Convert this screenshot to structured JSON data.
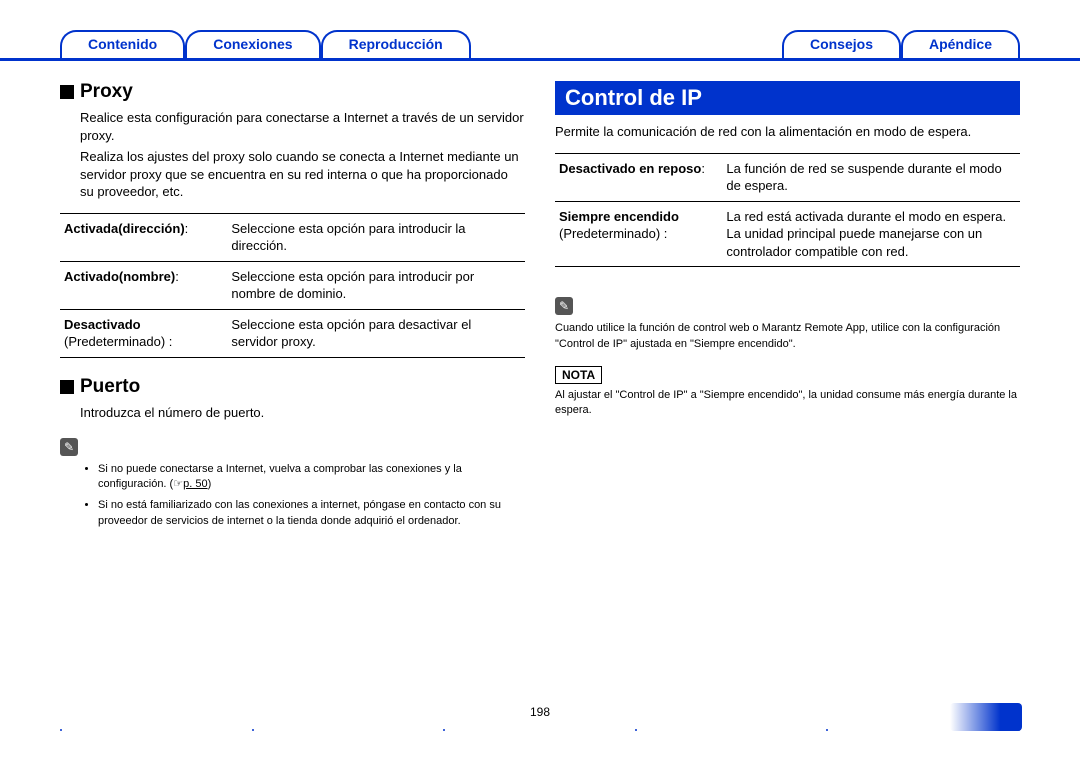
{
  "nav": {
    "left": [
      "Contenido",
      "Conexiones",
      "Reproducción"
    ],
    "right": [
      "Consejos",
      "Apéndice"
    ]
  },
  "left_col": {
    "proxy": {
      "heading": "Proxy",
      "para1": "Realice esta configuración para conectarse a Internet a través de un servidor proxy.",
      "para2": "Realiza los ajustes del proxy solo cuando se conecta a Internet mediante un servidor proxy que se encuentra en su red interna o que ha proporcionado su proveedor, etc.",
      "rows": [
        {
          "label": "Activada(dirección)",
          "extra": ":",
          "desc": "Seleccione esta opción para introducir la dirección."
        },
        {
          "label": "Activado(nombre)",
          "extra": ":",
          "desc": "Seleccione esta opción para introducir por nombre de dominio."
        },
        {
          "label": "Desactivado",
          "extra": "(Predeterminado) :",
          "desc": "Seleccione esta opción para desactivar el servidor proxy."
        }
      ]
    },
    "puerto": {
      "heading": "Puerto",
      "para": "Introduzca el número de puerto."
    },
    "tips": {
      "icon": "✎",
      "bullets": [
        {
          "text_a": "Si no puede conectarse a Internet, vuelva a comprobar las conexiones y la configuración. (",
          "link_icon": "☞",
          "link": "p. 50",
          "text_b": ")"
        },
        {
          "text": "Si no está familiarizado con las conexiones a internet, póngase en contacto con su proveedor de servicios de internet o la tienda donde adquirió el ordenador."
        }
      ]
    }
  },
  "right_col": {
    "banner": "Control de IP",
    "intro": "Permite la comunicación de red con la alimentación en modo de espera.",
    "rows": [
      {
        "label": "Desactivado en reposo",
        "extra": ":",
        "desc": "La función de red se suspende durante el modo de espera."
      },
      {
        "label": "Siempre encendido",
        "extra": "(Predeterminado) :",
        "desc": "La red está activada durante el modo en espera. La unidad principal puede manejarse con un controlador compatible con red."
      }
    ],
    "tip": {
      "icon": "✎",
      "text": "Cuando utilice la función de control web o Marantz Remote App, utilice con la configuración \"Control de IP\" ajustada en \"Siempre encendido\"."
    },
    "nota": {
      "label": "NOTA",
      "text": "Al ajustar el \"Control de IP\" a \"Siempre encendido\", la unidad consume más energía durante la espera."
    }
  },
  "page_number": "198",
  "colors": {
    "accent": "#0033cc"
  }
}
